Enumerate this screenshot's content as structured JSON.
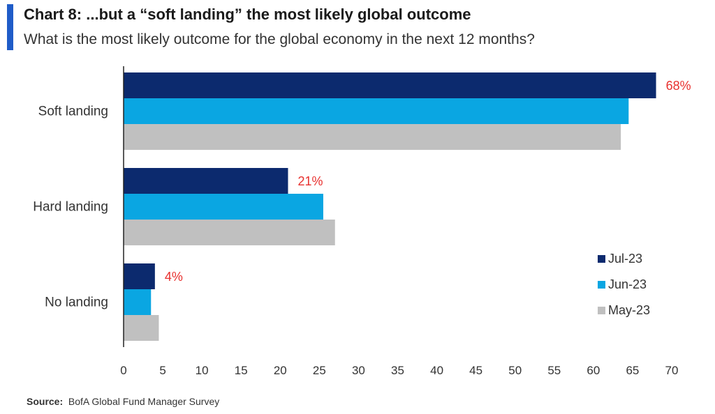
{
  "header": {
    "title": "Chart 8: ...but a “soft landing” the most likely global outcome",
    "subtitle": "What is the most likely outcome for the global economy in the next 12 months?"
  },
  "footer": {
    "source_label": "Source:",
    "source_text": "BofA Global Fund Manager Survey"
  },
  "colors": {
    "accent": "#1f5cc8",
    "data_label": "#e8312f"
  },
  "chart_data": {
    "type": "bar",
    "orientation": "horizontal",
    "categories": [
      "Soft landing",
      "Hard landing",
      "No landing"
    ],
    "series": [
      {
        "name": "Jul-23",
        "color": "#0c2a6e",
        "values": [
          68,
          21,
          4
        ]
      },
      {
        "name": "Jun-23",
        "color": "#0aa6e2",
        "values": [
          64.5,
          25.5,
          3.5
        ]
      },
      {
        "name": "May-23",
        "color": "#c0c0c0",
        "values": [
          63.5,
          27,
          4.5
        ]
      }
    ],
    "data_labels": [
      "68%",
      "21%",
      "4%"
    ],
    "xlim": [
      0,
      70
    ],
    "xticks": [
      0,
      5,
      10,
      15,
      20,
      25,
      30,
      35,
      40,
      45,
      50,
      55,
      60,
      65,
      70
    ],
    "grid": false,
    "legend_position": "right"
  }
}
